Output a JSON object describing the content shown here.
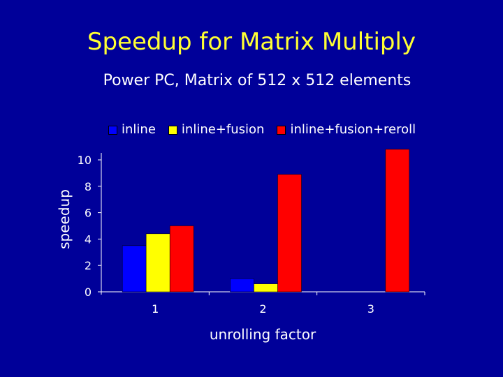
{
  "slide": {
    "title": "Speedup for Matrix Multiply",
    "subtitle": "Power PC, Matrix of 512 x 512 elements"
  },
  "colors": {
    "background": "#000099",
    "title": "#ffff33",
    "text": "#ffffff"
  },
  "chart_data": {
    "type": "bar",
    "categories": [
      "1",
      "2",
      "3"
    ],
    "series": [
      {
        "name": "inline",
        "values": [
          3.5,
          1.0,
          0
        ],
        "color": "#0000ff"
      },
      {
        "name": "inline+fusion",
        "values": [
          4.4,
          0.6,
          0
        ],
        "color": "#ffff00"
      },
      {
        "name": "inline+fusion+reroll",
        "values": [
          5.0,
          8.9,
          10.8
        ],
        "color": "#ff0000"
      }
    ],
    "xlabel": "unrolling factor",
    "ylabel": "speedup",
    "ylim": [
      0,
      10
    ],
    "yticks": [
      0,
      2,
      4,
      6,
      8,
      10
    ],
    "grid": false,
    "legend_position": "top"
  }
}
